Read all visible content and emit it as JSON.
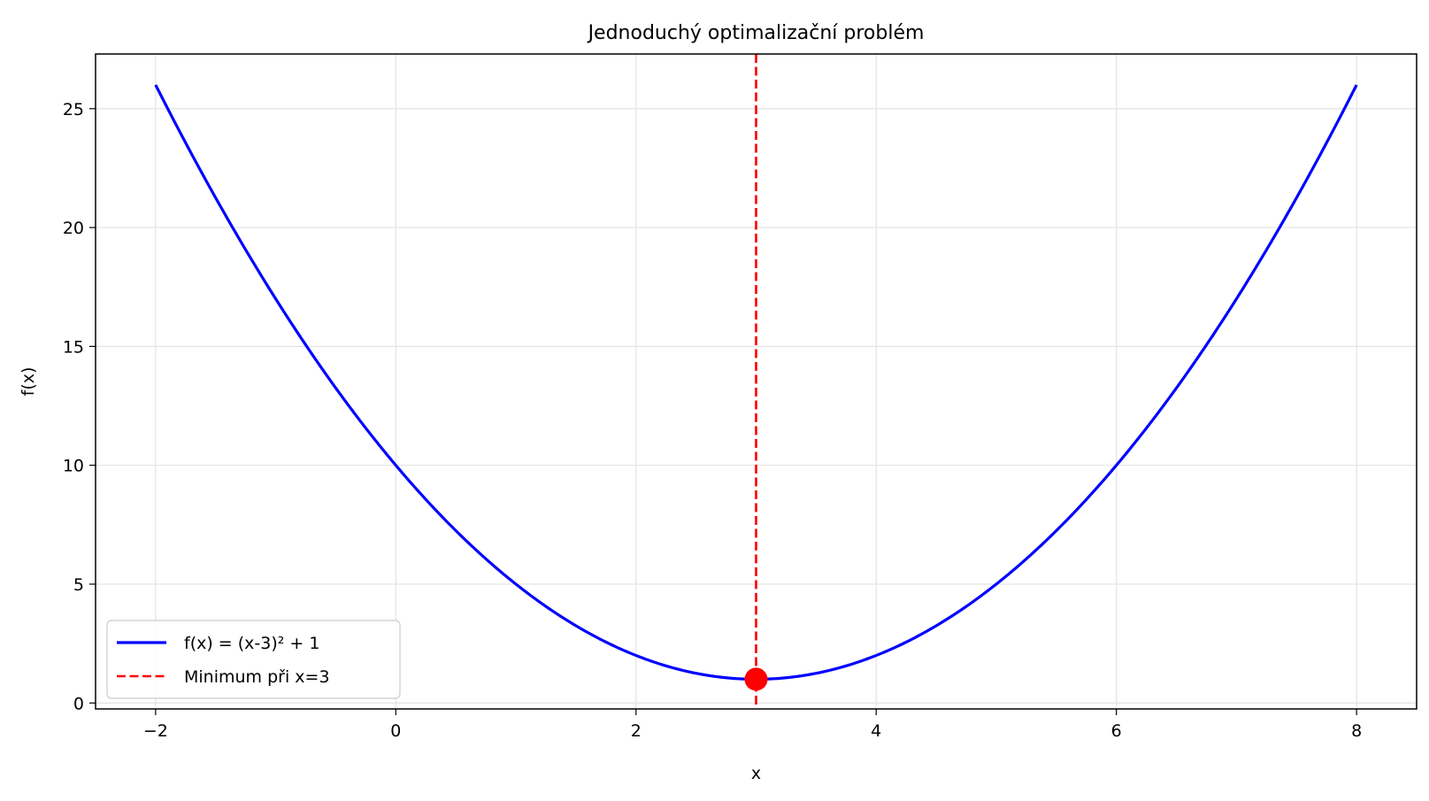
{
  "chart_data": {
    "type": "line",
    "title": "Jednoduchý optimalizační problém",
    "xlabel": "x",
    "ylabel": "f(x)",
    "xlim": [
      -2.5,
      8.5
    ],
    "ylim": [
      -0.25,
      27.3
    ],
    "x_ticks": [
      -2,
      0,
      2,
      4,
      6,
      8
    ],
    "x_tick_labels": [
      "−2",
      "0",
      "2",
      "4",
      "6",
      "8"
    ],
    "y_ticks": [
      0,
      5,
      10,
      15,
      20,
      25
    ],
    "y_tick_labels": [
      "0",
      "5",
      "10",
      "15",
      "20",
      "25"
    ],
    "grid": true,
    "legend_position": "lower-left",
    "series": [
      {
        "name": "f(x) = (x-3)² + 1",
        "style": "solid",
        "color": "#0000ff",
        "x": [
          -2,
          -1.5,
          -1,
          -0.5,
          0,
          0.5,
          1,
          1.5,
          2,
          2.5,
          3,
          3.5,
          4,
          4.5,
          5,
          5.5,
          6,
          6.5,
          7,
          7.5,
          8
        ],
        "y": [
          26,
          21.25,
          17,
          13.25,
          10,
          7.25,
          5,
          3.25,
          2,
          1.25,
          1,
          1.25,
          2,
          3.25,
          5,
          7.25,
          10,
          13.25,
          17,
          21.25,
          26
        ]
      },
      {
        "name": "Minimum při x=3",
        "style": "dashed",
        "color": "#ff0000",
        "vertical_line_x": 3
      }
    ],
    "markers": [
      {
        "x": 3,
        "y": 1,
        "color": "#ff0000"
      }
    ]
  }
}
